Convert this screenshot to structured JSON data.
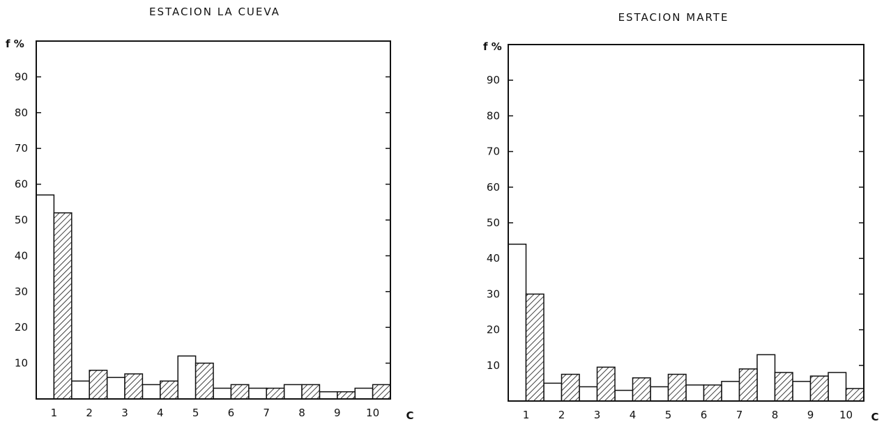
{
  "chart_data": [
    {
      "type": "bar",
      "title": "ESTACION LA CUEVA",
      "ylabel": "f %",
      "xlabel": "C",
      "ylim": [
        0,
        100
      ],
      "yticks": [
        10,
        20,
        30,
        40,
        50,
        60,
        70,
        80,
        90
      ],
      "categories": [
        "1",
        "2",
        "3",
        "4",
        "5",
        "6",
        "7",
        "8",
        "9",
        "10"
      ],
      "series": [
        {
          "style": "open",
          "values": [
            57,
            5,
            6,
            4,
            12,
            3,
            3,
            4,
            2,
            3
          ]
        },
        {
          "style": "hatched",
          "values": [
            52,
            8,
            7,
            5,
            10,
            4,
            3,
            4,
            2,
            4
          ]
        }
      ],
      "grid": false,
      "legend": "none"
    },
    {
      "type": "bar",
      "title": "ESTACION MARTE",
      "ylabel": "f %",
      "xlabel": "C",
      "ylim": [
        0,
        100
      ],
      "yticks": [
        10,
        20,
        30,
        40,
        50,
        60,
        70,
        80,
        90
      ],
      "categories": [
        "1",
        "2",
        "3",
        "4",
        "5",
        "6",
        "7",
        "8",
        "9",
        "10"
      ],
      "series": [
        {
          "style": "open",
          "values": [
            44,
            5,
            4,
            3,
            4,
            4.5,
            5.5,
            13,
            5.5,
            8
          ]
        },
        {
          "style": "hatched",
          "values": [
            30,
            7.5,
            9.5,
            6.5,
            7.5,
            4.5,
            9,
            8,
            7,
            3.5
          ]
        }
      ],
      "grid": false,
      "legend": "none"
    }
  ]
}
